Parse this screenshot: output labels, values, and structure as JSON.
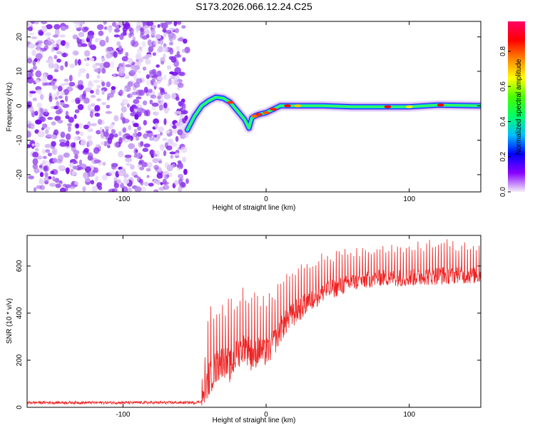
{
  "chart_data": [
    {
      "type": "heatmap",
      "title": "S173.2026.066.12.24.C25",
      "xlabel": "Height of straight line (km)",
      "ylabel": "Frequency (Hz)",
      "xlim": [
        -167,
        150
      ],
      "ylim": [
        -25,
        24.5
      ],
      "xticks": [
        -100,
        0,
        100
      ],
      "yticks": [
        20,
        10,
        0,
        -10,
        -20
      ],
      "noise_region_x": [
        -167,
        -55
      ],
      "ridge": {
        "x": [
          -55,
          -50,
          -45,
          -40,
          -35,
          -30,
          -25,
          -20,
          -15,
          -12,
          -10,
          -8,
          -5,
          0,
          5,
          10,
          15,
          20,
          40,
          60,
          80,
          100,
          120,
          150
        ],
        "y": [
          -7,
          -3,
          0,
          1.5,
          2.5,
          2.2,
          1,
          -1.5,
          -4,
          -6.5,
          -3.5,
          -3,
          -2.5,
          -2,
          -1,
          0,
          0,
          0,
          0,
          -0.3,
          -0.3,
          -0.3,
          0.2,
          0
        ]
      },
      "colorbar": {
        "label": "Normalized spectral amplitude",
        "ticks": [
          0.0,
          0.2,
          0.4,
          0.6,
          0.8
        ],
        "range": [
          0,
          0.97
        ],
        "colors": [
          "#f5f0f8",
          "#8800ff",
          "#0000ff",
          "#00bfff",
          "#00ff66",
          "#44ff00",
          "#ffff00",
          "#ff8800",
          "#ff0000",
          "#ff0066"
        ]
      }
    },
    {
      "type": "line",
      "xlabel": "Height of straight line (km)",
      "ylabel": "SNR (10 * v/v)",
      "xlim": [
        -167,
        150
      ],
      "ylim": [
        0,
        730
      ],
      "xticks": [
        -100,
        0,
        100
      ],
      "yticks": [
        0,
        200,
        400,
        600
      ],
      "line_color": "#ee2222",
      "series": [
        {
          "name": "SNR",
          "x": [
            -167,
            -140,
            -110,
            -80,
            -50,
            -45,
            -40,
            -35,
            -30,
            -25,
            -20,
            -15,
            -10,
            -5,
            0,
            5,
            10,
            15,
            20,
            30,
            40,
            60,
            80,
            100,
            120,
            150
          ],
          "y": [
            20,
            20,
            20,
            20,
            20,
            25,
            120,
            170,
            200,
            170,
            230,
            260,
            220,
            240,
            230,
            270,
            330,
            370,
            400,
            450,
            490,
            530,
            550,
            550,
            560,
            560
          ],
          "peak_y": [
            25,
            28,
            28,
            28,
            28,
            120,
            420,
            460,
            480,
            460,
            500,
            520,
            500,
            480,
            470,
            520,
            560,
            590,
            620,
            640,
            660,
            680,
            690,
            700,
            720,
            700
          ]
        }
      ]
    }
  ]
}
